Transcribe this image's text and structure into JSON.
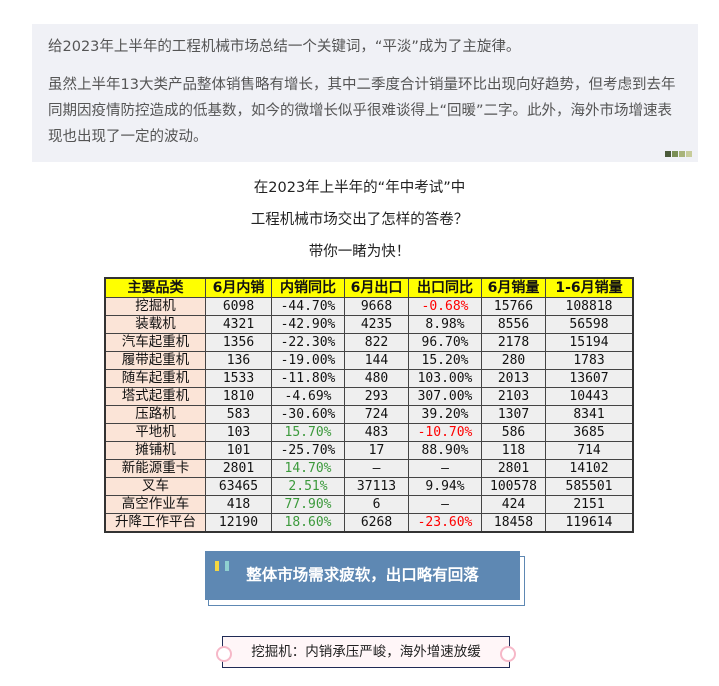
{
  "intro": {
    "p1": "给2023年上半年的工程机械市场总结一个关键词，“平淡”成为了主旋律。",
    "p2": "虽然上半年13大类产品整体销售略有增长，其中二季度合计销量环比出现向好趋势，但考虑到去年同期因疫情防控造成的低基数，如今的微增长似乎很难谈得上“回暖”二字。此外，海外市场增速表现也出现了一定的波动。",
    "dot_colors": [
      "#4b5a3a",
      "#7a8f55",
      "#a9b47a",
      "#c7cc9a"
    ]
  },
  "headline": {
    "line1": "在2023年上半年的“年中考试”中",
    "line2": "工程机械市场交出了怎样的答卷？",
    "line3": "带你一睹为快！"
  },
  "table": {
    "headers": [
      "主要品类",
      "6月内销",
      "内销同比",
      "6月出口",
      "出口同比",
      "6月销量",
      "1-6月销量"
    ],
    "rows": [
      [
        "挖掘机",
        "6098",
        "-44.70%",
        "9668",
        "-0.68%",
        "15766",
        "108818"
      ],
      [
        "装载机",
        "4321",
        "-42.90%",
        "4235",
        "8.98%",
        "8556",
        "56598"
      ],
      [
        "汽车起重机",
        "1356",
        "-22.30%",
        "822",
        "96.70%",
        "2178",
        "15194"
      ],
      [
        "履带起重机",
        "136",
        "-19.00%",
        "144",
        "15.20%",
        "280",
        "1783"
      ],
      [
        "随车起重机",
        "1533",
        "-11.80%",
        "480",
        "103.00%",
        "2013",
        "13607"
      ],
      [
        "塔式起重机",
        "1810",
        "-4.69%",
        "293",
        "307.00%",
        "2103",
        "10443"
      ],
      [
        "压路机",
        "583",
        "-30.60%",
        "724",
        "39.20%",
        "1307",
        "8341"
      ],
      [
        "平地机",
        "103",
        "15.70%",
        "483",
        "-10.70%",
        "586",
        "3685"
      ],
      [
        "摊铺机",
        "101",
        "-25.70%",
        "17",
        "88.90%",
        "118",
        "714"
      ],
      [
        "新能源重卡",
        "2801",
        "14.70%",
        "—",
        "—",
        "2801",
        "14102"
      ],
      [
        "叉车",
        "63465",
        "2.51%",
        "37113",
        "9.94%",
        "100578",
        "585501"
      ],
      [
        "高空作业车",
        "418",
        "77.90%",
        "6",
        "—",
        "424",
        "2151"
      ],
      [
        "升降工作平台",
        "12190",
        "18.60%",
        "6268",
        "-23.60%",
        "18458",
        "119614"
      ]
    ],
    "colors": {
      "header_bg": "#ffff00",
      "category_bg": "#fbe4d7",
      "positive_growth": "#3c9a3c",
      "negative_export": "#ff0000"
    }
  },
  "section": {
    "title": "整体市场需求疲软，出口略有回落",
    "bg": "#5e88b3"
  },
  "subsection": {
    "title": "挖掘机：内销承压严峻，海外增速放缓"
  }
}
